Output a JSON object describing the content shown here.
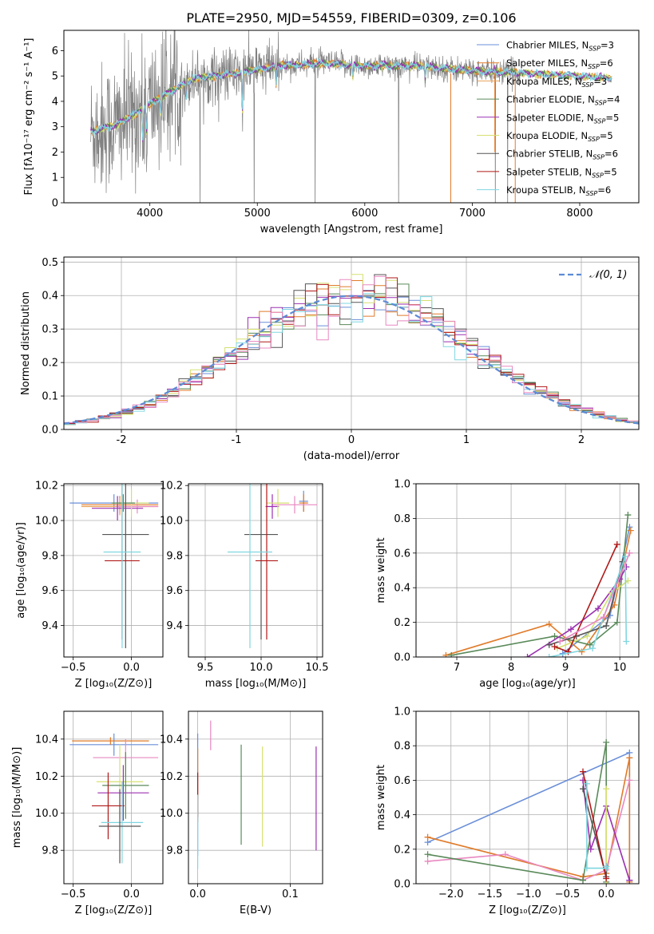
{
  "figure": {
    "title": "PLATE=2950, MJD=54559, FIBERID=0309, z=0.106"
  },
  "colors": {
    "Chabrier MILES": "#6a8fd8",
    "Salpeter MILES": "#e07b2a",
    "Kroupa MILES": "#e8a25a",
    "Chabrier ELODIE": "#5a8a5a",
    "Salpeter ELODIE": "#9b30b0",
    "Kroupa ELODIE": "#d6e070",
    "Chabrier STELIB": "#555555",
    "Salpeter STELIB": "#b01818",
    "Kroupa STELIB": "#7fd6e0",
    "gaussian": "#5b8bd6",
    "data": "#808080",
    "pink": "#e888c0"
  },
  "chart_data": [
    {
      "panel": "spectrum",
      "type": "line",
      "xlabel": "wavelength [Angstrom, rest frame]",
      "ylabel": "Flux [fλ10⁻¹⁷ erg cm⁻² s⁻¹ A⁻¹]",
      "xlim": [
        3200,
        8550
      ],
      "ylim": [
        0,
        6.8
      ],
      "xticks": [
        4000,
        5000,
        6000,
        7000,
        8000
      ],
      "yticks": [
        0,
        1,
        2,
        3,
        4,
        5,
        6
      ],
      "legend_position": "right",
      "legend": [
        {
          "label": "Chabrier MILES, N",
          "sub": "SSP",
          "suffix": "=3",
          "key": "Chabrier MILES"
        },
        {
          "label": "Salpeter MILES, N",
          "sub": "SSP",
          "suffix": "=6",
          "key": "Salpeter MILES"
        },
        {
          "label": "Kroupa MILES, N",
          "sub": "SSP",
          "suffix": "=3",
          "key": "Kroupa MILES"
        },
        {
          "label": "Chabrier ELODIE, N",
          "sub": "SSP",
          "suffix": "=4",
          "key": "Chabrier ELODIE"
        },
        {
          "label": "Salpeter ELODIE, N",
          "sub": "SSP",
          "suffix": "=5",
          "key": "Salpeter ELODIE"
        },
        {
          "label": "Kroupa ELODIE, N",
          "sub": "SSP",
          "suffix": "=5",
          "key": "Kroupa ELODIE"
        },
        {
          "label": "Chabrier STELIB, N",
          "sub": "SSP",
          "suffix": "=6",
          "key": "Chabrier STELIB"
        },
        {
          "label": "Salpeter STELIB, N",
          "sub": "SSP",
          "suffix": "=5",
          "key": "Salpeter STELIB"
        },
        {
          "label": "Kroupa STELIB, N",
          "sub": "SSP",
          "suffix": "=6",
          "key": "Kroupa STELIB"
        }
      ],
      "continuum": [
        [
          3450,
          2.8
        ],
        [
          3700,
          3.1
        ],
        [
          3900,
          3.6
        ],
        [
          4000,
          3.9
        ],
        [
          4200,
          4.4
        ],
        [
          4400,
          4.9
        ],
        [
          4800,
          5.1
        ],
        [
          5200,
          5.4
        ],
        [
          5600,
          5.5
        ],
        [
          6000,
          5.4
        ],
        [
          6500,
          5.4
        ],
        [
          7000,
          5.2
        ],
        [
          7500,
          5.1
        ],
        [
          8000,
          5.0
        ],
        [
          8300,
          4.9
        ]
      ],
      "data_range": [
        3450,
        7450
      ],
      "model_range": [
        3450,
        8300
      ]
    },
    {
      "panel": "residuals",
      "type": "step",
      "xlabel": "(data-model)/error",
      "ylabel": "Normed distribution",
      "xlim": [
        -2.5,
        2.5
      ],
      "ylim": [
        0,
        0.515
      ],
      "xticks": [
        -2,
        -1,
        0,
        1,
        2
      ],
      "yticks": [
        0.0,
        0.1,
        0.2,
        0.3,
        0.4,
        0.5
      ],
      "legend": [
        {
          "label": "𝒩(0, 1)",
          "key": "gaussian"
        }
      ],
      "legend_position": "top-right",
      "bin_width": 0.1,
      "gaussian": {
        "mean": 0,
        "sigma": 1
      }
    },
    {
      "panel": "age-vs-Z",
      "type": "errorbar",
      "xlabel": "Z [log₁₀(Z/Z⊙)]",
      "ylabel": "age  [log₁₀(age/yr)]",
      "xlim": [
        -0.58,
        0.27
      ],
      "ylim": [
        9.22,
        10.21
      ],
      "xticks": [
        -0.5,
        0.0
      ],
      "xticklabels": [
        "−0.5",
        "0.0"
      ],
      "yticks": [
        9.4,
        9.6,
        9.8,
        10.0,
        10.2
      ],
      "points": [
        {
          "key": "Chabrier MILES",
          "x": -0.15,
          "y": 10.1,
          "xerr": 0.38,
          "yerr": 0.05
        },
        {
          "key": "Salpeter MILES",
          "x": -0.1,
          "y": 10.09,
          "xerr": 0.33,
          "yerr": 0.05
        },
        {
          "key": "Kroupa MILES",
          "x": -0.1,
          "y": 10.08,
          "xerr": 0.33,
          "yerr": 0.05
        },
        {
          "key": "pink",
          "x": 0.05,
          "y": 10.08,
          "xerr": 0.18,
          "yerr": 0.04
        },
        {
          "key": "Salpeter ELODIE",
          "x": -0.12,
          "y": 10.07,
          "xerr": 0.22,
          "yerr": 0.07
        },
        {
          "key": "Kroupa ELODIE",
          "x": 0.0,
          "y": 10.1,
          "xerr": 0.15,
          "yerr": 0.08
        },
        {
          "key": "Chabrier ELODIE",
          "x": -0.07,
          "y": 10.1,
          "xerr": 0.1,
          "yerr": 0.05
        },
        {
          "key": "Chabrier STELIB",
          "x": -0.05,
          "y": 9.92,
          "xerr": 0.2,
          "yerr": 0.65
        },
        {
          "key": "Salpeter STELIB",
          "x": -0.08,
          "y": 9.77,
          "xerr": 0.15,
          "yerr": 0.45
        },
        {
          "key": "Kroupa STELIB",
          "x": -0.08,
          "y": 9.82,
          "xerr": 0.16,
          "yerr": 0.55
        }
      ]
    },
    {
      "panel": "age-vs-mass",
      "type": "errorbar",
      "xlabel": "mass [log₁₀(M/M⊙)]",
      "ylabel": "",
      "xlim": [
        9.35,
        10.55
      ],
      "ylim": [
        9.22,
        10.21
      ],
      "xticks": [
        9.5,
        10.0,
        10.5
      ],
      "yticks": [
        9.4,
        9.6,
        9.8,
        10.0,
        10.2
      ],
      "points": [
        {
          "key": "Chabrier MILES",
          "x": 10.38,
          "y": 10.11,
          "xerr": 0.04,
          "yerr": 0.06
        },
        {
          "key": "Salpeter MILES",
          "x": 10.38,
          "y": 10.1,
          "xerr": 0.04,
          "yerr": 0.05
        },
        {
          "key": "pink",
          "x": 10.3,
          "y": 10.09,
          "xerr": 0.2,
          "yerr": 0.05
        },
        {
          "key": "Salpeter ELODIE",
          "x": 10.1,
          "y": 10.08,
          "xerr": 0.06,
          "yerr": 0.07
        },
        {
          "key": "Kroupa ELODIE",
          "x": 10.15,
          "y": 10.1,
          "xerr": 0.1,
          "yerr": 0.08
        },
        {
          "key": "Chabrier STELIB",
          "x": 10.0,
          "y": 9.92,
          "xerr": 0.15,
          "yerr": 0.6
        },
        {
          "key": "Salpeter STELIB",
          "x": 10.05,
          "y": 9.77,
          "xerr": 0.1,
          "yerr": 0.45
        },
        {
          "key": "Kroupa STELIB",
          "x": 9.9,
          "y": 9.82,
          "xerr": 0.2,
          "yerr": 0.55
        }
      ]
    },
    {
      "panel": "weight-vs-age",
      "type": "line",
      "xlabel": "age  [log₁₀(age/yr)]",
      "ylabel": "mass weight",
      "xlim": [
        6.25,
        10.35
      ],
      "ylim": [
        0,
        1
      ],
      "xticks": [
        7,
        8,
        9,
        10
      ],
      "yticks": [
        0.0,
        0.2,
        0.4,
        0.6,
        0.8,
        1.0
      ],
      "series": [
        {
          "key": "Chabrier MILES",
          "x": [
            8.95,
            9.82,
            10.18
          ],
          "y": [
            0.02,
            0.24,
            0.75
          ]
        },
        {
          "key": "Salpeter MILES",
          "x": [
            6.8,
            8.7,
            9.3,
            9.9,
            10.2
          ],
          "y": [
            0.01,
            0.19,
            0.03,
            0.3,
            0.73
          ]
        },
        {
          "key": "Chabrier ELODIE",
          "x": [
            6.9,
            8.8,
            9.45,
            9.95,
            10.15
          ],
          "y": [
            0.01,
            0.12,
            0.07,
            0.2,
            0.82
          ]
        },
        {
          "key": "Salpeter ELODIE",
          "x": [
            8.3,
            9.1,
            9.6,
            10.0,
            10.12
          ],
          "y": [
            0.0,
            0.16,
            0.28,
            0.45,
            0.52
          ]
        },
        {
          "key": "Kroupa ELODIE",
          "x": [
            8.85,
            9.4,
            9.85,
            10.15
          ],
          "y": [
            0.05,
            0.12,
            0.37,
            0.44
          ]
        },
        {
          "key": "Chabrier STELIB",
          "x": [
            8.7,
            9.2,
            9.75,
            10.05
          ],
          "y": [
            0.07,
            0.12,
            0.18,
            0.55
          ]
        },
        {
          "key": "Salpeter STELIB",
          "x": [
            8.8,
            9.05,
            9.95
          ],
          "y": [
            0.06,
            0.03,
            0.65
          ]
        },
        {
          "key": "Kroupa STELIB",
          "x": [
            8.7,
            9.5,
            10.1,
            10.12
          ],
          "y": [
            0.0,
            0.05,
            0.58,
            0.09
          ]
        },
        {
          "key": "pink",
          "x": [
            8.9,
            9.7,
            10.18
          ],
          "y": [
            0.09,
            0.23,
            0.6
          ]
        }
      ]
    },
    {
      "panel": "mass-vs-Z",
      "type": "errorbar",
      "xlabel": "Z [log₁₀(Z/Z⊙)]",
      "ylabel": "mass [log₁₀(M/M⊙)]",
      "xlim": [
        -0.58,
        0.27
      ],
      "ylim": [
        9.62,
        10.55
      ],
      "xticks": [
        -0.5,
        0.0
      ],
      "xticklabels": [
        "−0.5",
        "0.0"
      ],
      "yticks": [
        9.8,
        10.0,
        10.2,
        10.4
      ],
      "points": [
        {
          "key": "Chabrier MILES",
          "x": -0.15,
          "y": 10.37,
          "xerr": 0.38,
          "yerr": 0.06
        },
        {
          "key": "Salpeter MILES",
          "x": -0.18,
          "y": 10.39,
          "xerr": 0.33,
          "yerr": 0.02
        },
        {
          "key": "pink",
          "x": -0.05,
          "y": 10.3,
          "xerr": 0.28,
          "yerr": 0.1
        },
        {
          "key": "Kroupa ELODIE",
          "x": -0.1,
          "y": 10.17,
          "xerr": 0.2,
          "yerr": 0.2
        },
        {
          "key": "Salpeter ELODIE",
          "x": -0.07,
          "y": 10.11,
          "xerr": 0.22,
          "yerr": 0.15
        },
        {
          "key": "Chabrier ELODIE",
          "x": -0.05,
          "y": 10.15,
          "xerr": 0.2,
          "yerr": 0.18
        },
        {
          "key": "Salpeter STELIB",
          "x": -0.2,
          "y": 10.04,
          "xerr": 0.14,
          "yerr": 0.18
        },
        {
          "key": "Kroupa STELIB",
          "x": -0.08,
          "y": 9.95,
          "xerr": 0.18,
          "yerr": 0.22
        },
        {
          "key": "Chabrier STELIB",
          "x": -0.1,
          "y": 9.93,
          "xerr": 0.18,
          "yerr": 0.2
        }
      ]
    },
    {
      "panel": "mass-vs-EBV",
      "type": "errorbar",
      "xlabel": "E(B-V)",
      "ylabel": "",
      "xlim": [
        -0.01,
        0.135
      ],
      "ylim": [
        9.62,
        10.55
      ],
      "xticks": [
        0.0,
        0.1
      ],
      "yticks": [
        9.8,
        10.0,
        10.2,
        10.4
      ],
      "points": [
        {
          "key": "Chabrier MILES",
          "x": 0.0,
          "y": 10.1,
          "yerr": 0.33
        },
        {
          "key": "Salpeter MILES",
          "x": 0.0,
          "y": 10.15,
          "yerr": 0.2
        },
        {
          "key": "Salpeter STELIB",
          "x": 0.0,
          "y": 10.1,
          "yerr": 0.12
        },
        {
          "key": "Kroupa STELIB",
          "x": 0.0,
          "y": 9.9,
          "yerr": 0.2
        },
        {
          "key": "pink",
          "x": 0.014,
          "y": 10.42,
          "yerr": 0.08
        },
        {
          "key": "Chabrier ELODIE",
          "x": 0.047,
          "y": 10.1,
          "yerr": 0.27
        },
        {
          "key": "Kroupa ELODIE",
          "x": 0.07,
          "y": 10.09,
          "yerr": 0.27
        },
        {
          "key": "Salpeter ELODIE",
          "x": 0.128,
          "y": 10.08,
          "yerr": 0.28
        }
      ]
    },
    {
      "panel": "weight-vs-Z",
      "type": "line",
      "xlabel": "Z [log₁₀(Z/Z⊙)]",
      "ylabel": "mass weight",
      "xlim": [
        -2.45,
        0.42
      ],
      "ylim": [
        0,
        1
      ],
      "xticks": [
        -2.0,
        -1.5,
        -1.0,
        -0.5,
        0.0
      ],
      "xticklabels": [
        "−2.0",
        "−1.5",
        "−1.0",
        "−0.5",
        "0.0"
      ],
      "yticks": [
        0.0,
        0.2,
        0.4,
        0.6,
        0.8,
        1.0
      ],
      "series": [
        {
          "key": "Chabrier MILES",
          "x": [
            -2.3,
            0.3,
            0.3
          ],
          "y": [
            0.24,
            0.76,
            0.02
          ]
        },
        {
          "key": "Salpeter MILES",
          "x": [
            -2.3,
            -0.3,
            0.0,
            0.3,
            0.3
          ],
          "y": [
            0.27,
            0.04,
            0.06,
            0.73,
            0.01
          ]
        },
        {
          "key": "pink",
          "x": [
            -2.3,
            -1.3,
            -0.3,
            0.0,
            0.3
          ],
          "y": [
            0.13,
            0.17,
            0.02,
            0.08,
            0.6
          ]
        },
        {
          "key": "Chabrier ELODIE",
          "x": [
            -2.3,
            -0.3,
            0.0,
            0.0
          ],
          "y": [
            0.17,
            0.02,
            0.82,
            0.01
          ]
        },
        {
          "key": "Salpeter ELODIE",
          "x": [
            -0.3,
            -0.2,
            0.0,
            0.3
          ],
          "y": [
            0.6,
            0.2,
            0.45,
            0.02
          ]
        },
        {
          "key": "Kroupa ELODIE",
          "x": [
            0.0,
            0.0
          ],
          "y": [
            0.55,
            0.0
          ]
        },
        {
          "key": "Chabrier STELIB",
          "x": [
            -0.3,
            0.0,
            0.0
          ],
          "y": [
            0.55,
            0.04,
            0.1
          ]
        },
        {
          "key": "Salpeter STELIB",
          "x": [
            -0.3,
            0.0
          ],
          "y": [
            0.65,
            0.03
          ]
        },
        {
          "key": "Kroupa STELIB",
          "x": [
            -0.25,
            -0.25,
            0.0,
            0.0
          ],
          "y": [
            0.58,
            0.09,
            0.09,
            0.1
          ]
        }
      ]
    }
  ]
}
